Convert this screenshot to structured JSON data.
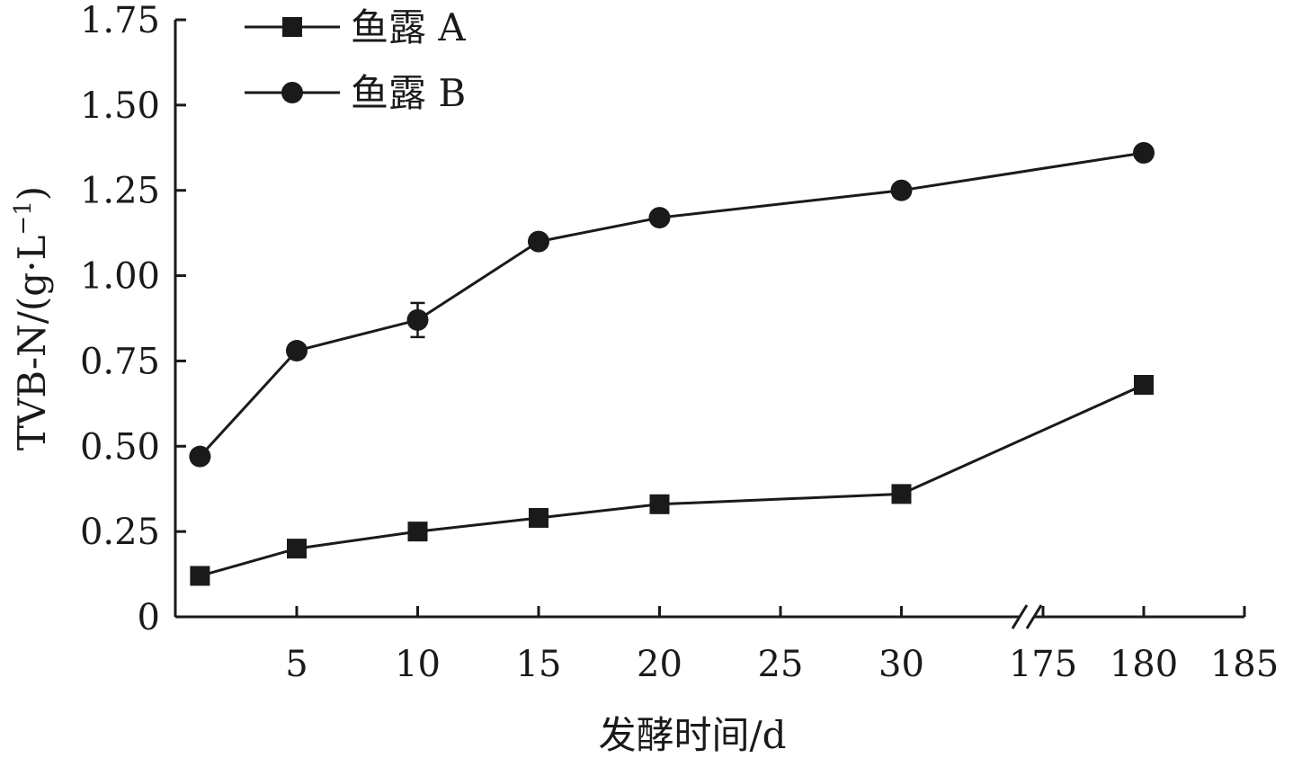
{
  "chart_data": {
    "type": "line",
    "xlabel": "发酵时间/d",
    "ylabel_parts": {
      "main": "TVB-N/(g·L",
      "sup": "−1",
      "close": ")"
    },
    "ylim": [
      0,
      1.75
    ],
    "yticks": [
      "0",
      "0.25",
      "0.50",
      "0.75",
      "1.00",
      "1.25",
      "1.50",
      "1.75"
    ],
    "ytick_values": [
      0,
      0.25,
      0.5,
      0.75,
      1.0,
      1.25,
      1.5,
      1.75
    ],
    "axis_break": {
      "from": 30,
      "to": 175
    },
    "xticks_left": [
      5,
      10,
      15,
      20,
      25,
      30
    ],
    "xticks_right": [
      175,
      180,
      185
    ],
    "x": [
      1,
      5,
      10,
      15,
      20,
      30,
      180
    ],
    "series": [
      {
        "name": "鱼露 A",
        "marker": "square",
        "values": [
          0.12,
          0.2,
          0.25,
          0.29,
          0.33,
          0.36,
          0.68
        ],
        "errors": [
          0,
          0,
          0,
          0,
          0,
          0,
          0
        ]
      },
      {
        "name": "鱼露 B",
        "marker": "circle",
        "values": [
          0.47,
          0.78,
          0.87,
          1.1,
          1.17,
          1.25,
          1.36
        ],
        "errors": [
          0,
          0.02,
          0.05,
          0,
          0,
          0,
          0
        ]
      }
    ],
    "legend_position": "top-left"
  }
}
